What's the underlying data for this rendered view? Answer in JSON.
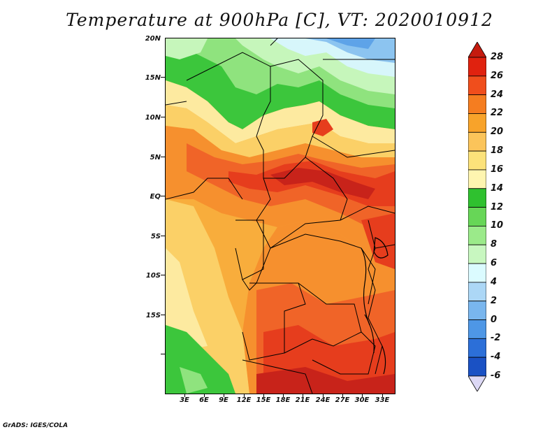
{
  "title": "Temperature at 900hPa [C], VT: 2020010912",
  "footer": "GrADS: IGES/COLA",
  "axes": {
    "lat_labels": [
      "20N",
      "15N",
      "10N",
      "5N",
      "EQ",
      "5S",
      "10S",
      "15S"
    ],
    "lon_labels": [
      "3E",
      "6E",
      "9E",
      "12E",
      "15E",
      "18E",
      "21E",
      "24E",
      "27E",
      "30E",
      "33E"
    ]
  },
  "colorbar": {
    "labels": [
      "28",
      "26",
      "24",
      "22",
      "20",
      "18",
      "16",
      "14",
      "12",
      "10",
      "8",
      "6",
      "4",
      "2",
      "0",
      "-2",
      "-4",
      "-6"
    ],
    "colors": [
      "#a50b0b",
      "#d7301f",
      "#f04e1c",
      "#f57d20",
      "#f8a32a",
      "#fbc45a",
      "#fce98c",
      "#fffbc6",
      "#37c637",
      "#6fdb5f",
      "#9eeb88",
      "#c9f7bd",
      "#ddfbff",
      "#aed8f6",
      "#7bb8ee",
      "#4e97e6",
      "#2c6fd8",
      "#184ebf",
      "#0c2fa0",
      "#050b6b",
      "#d9d6f2"
    ],
    "top_color": "#c51b0f",
    "bottom_color": "#dcd8f5"
  },
  "map": {
    "colors": {
      "dark_red": "#c8231a",
      "red": "#e63d1d",
      "orange_red": "#f06428",
      "orange": "#f6902e",
      "light_orange": "#f8ad3c",
      "yellow": "#fbd067",
      "pale_yellow": "#fdeaa0",
      "green": "#3cc63c",
      "light_green": "#8fe37e",
      "pale_green": "#c6f6bb",
      "pale_blue": "#d7f6fb",
      "light_blue": "#8cc4f0",
      "blue": "#5ea3e8"
    }
  }
}
